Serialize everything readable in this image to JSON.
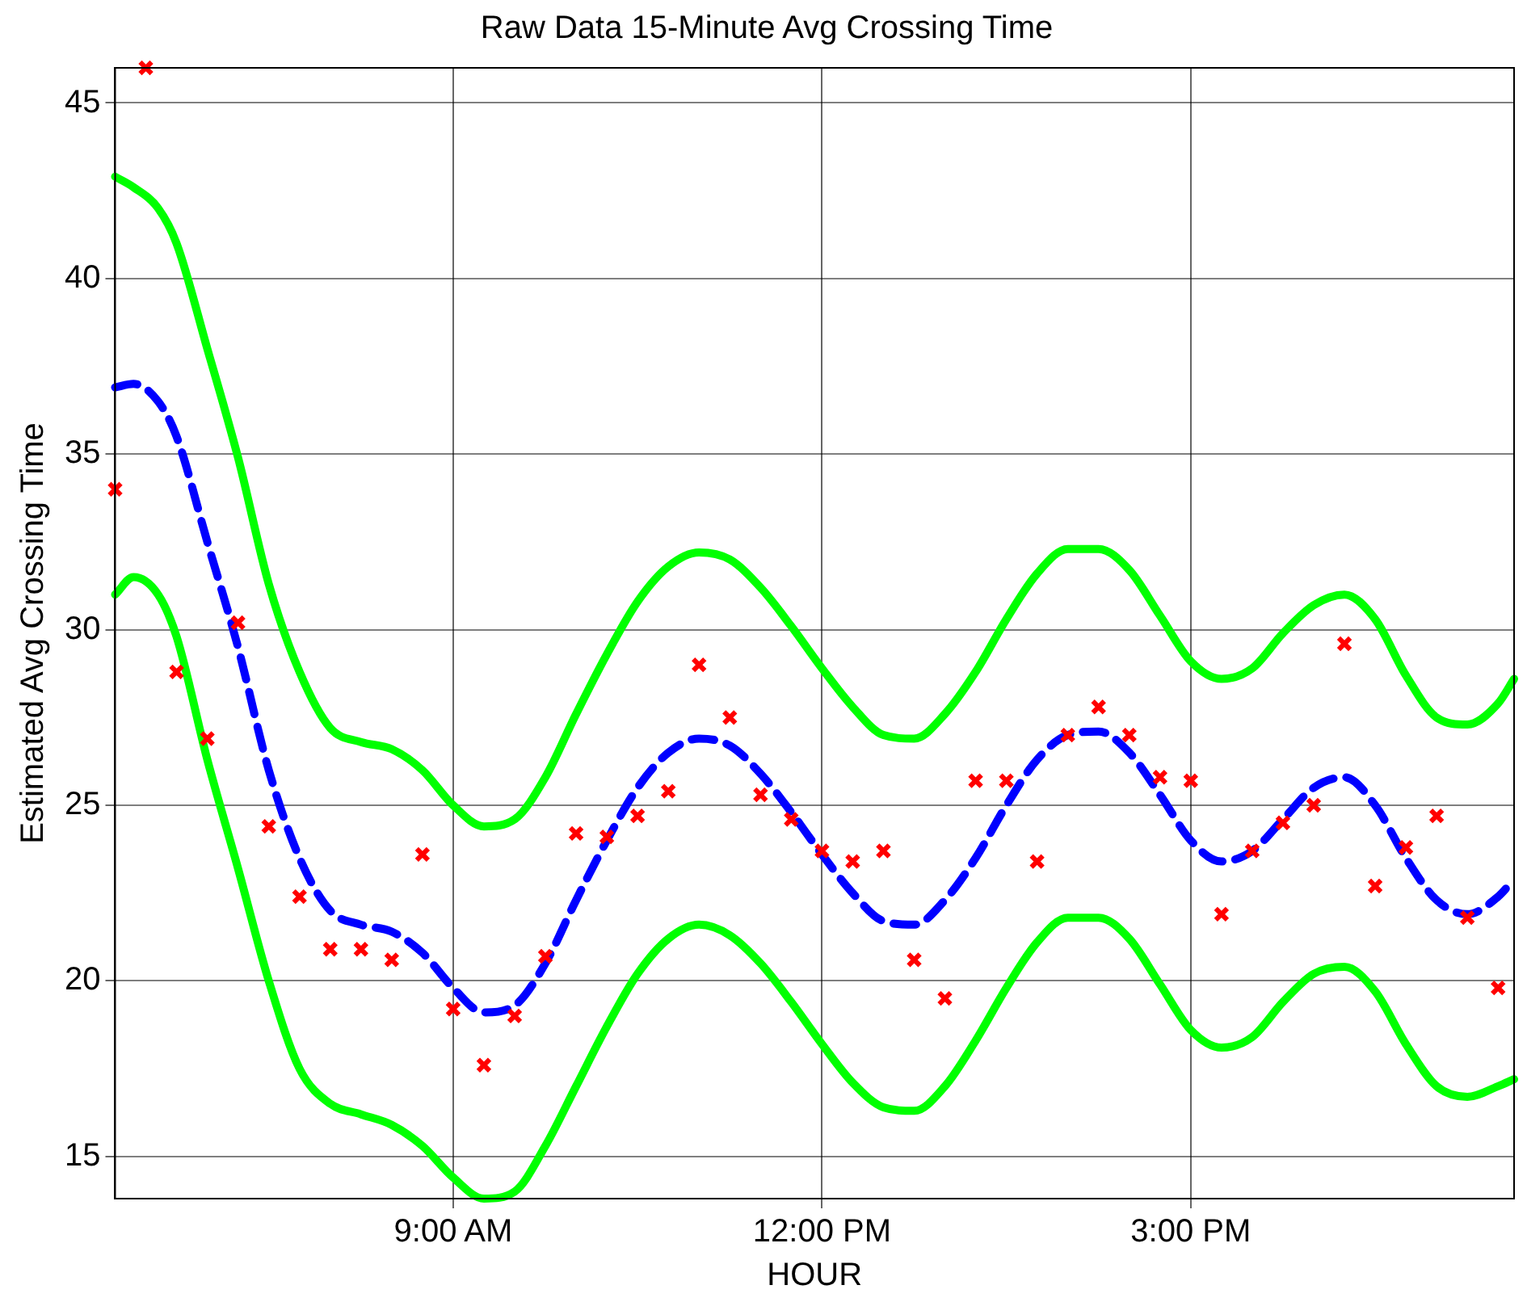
{
  "chart_data": {
    "type": "line",
    "title": "Raw Data 15-Minute Avg Crossing Time",
    "xlabel": "HOUR",
    "ylabel": "Estimated Avg Crossing Time",
    "xlim": [
      6.25,
      17.63
    ],
    "xticks": [
      {
        "value": 9,
        "label": "9:00 AM"
      },
      {
        "value": 12,
        "label": "12:00 PM"
      },
      {
        "value": 15,
        "label": "3:00 PM"
      }
    ],
    "ylim": [
      13.8,
      46
    ],
    "yticks": [
      15,
      20,
      25,
      30,
      35,
      40,
      45
    ],
    "grid": true,
    "legend": false,
    "series": [
      {
        "type": "scatter",
        "color": "#ff0000",
        "marker": "cross",
        "x": [
          6.25,
          6.5,
          6.75,
          7,
          7.25,
          7.5,
          7.75,
          8,
          8.25,
          8.5,
          8.75,
          9,
          9.25,
          9.5,
          9.75,
          10,
          10.25,
          10.5,
          10.75,
          11,
          11.25,
          11.5,
          11.75,
          12,
          12.25,
          12.5,
          12.75,
          13,
          13.25,
          13.5,
          13.75,
          14,
          14.25,
          14.5,
          14.75,
          15,
          15.25,
          15.5,
          15.75,
          16,
          16.25,
          16.5,
          16.75,
          17,
          17.25,
          17.5
        ],
        "values": [
          34.0,
          46,
          28.8,
          26.9,
          30.2,
          24.4,
          22.4,
          20.9,
          20.9,
          20.6,
          23.6,
          19.2,
          17.6,
          19.0,
          20.7,
          24.2,
          24.1,
          24.7,
          25.4,
          29.0,
          27.5,
          25.3,
          24.6,
          23.7,
          23.4,
          23.7,
          20.6,
          19.5,
          25.7,
          25.7,
          23.4,
          27.0,
          27.8,
          27.0,
          25.8,
          25.7,
          21.9,
          23.7,
          24.5,
          25.0,
          29.6,
          22.7,
          23.8,
          24.7,
          21.8,
          19.8
        ]
      },
      {
        "color": "#0000ff",
        "line_style": "dashed",
        "x": [
          6.25,
          6.4,
          6.6,
          6.75,
          7,
          7.25,
          7.5,
          7.75,
          8,
          8.25,
          8.5,
          8.75,
          9,
          9.25,
          9.5,
          9.75,
          10,
          10.25,
          10.5,
          10.75,
          11,
          11.25,
          11.5,
          11.75,
          12,
          12.25,
          12.5,
          12.75,
          13,
          13.25,
          13.5,
          13.75,
          14,
          14.25,
          14.5,
          14.75,
          15,
          15.25,
          15.5,
          15.75,
          16,
          16.25,
          16.5,
          16.75,
          17,
          17.25,
          17.5,
          17.63
        ],
        "values": [
          36.9,
          37.0,
          36.5,
          35.5,
          32.5,
          29.5,
          26.0,
          23.5,
          22.0,
          21.6,
          21.4,
          20.8,
          19.8,
          19.1,
          19.3,
          20.5,
          22.3,
          24.0,
          25.5,
          26.5,
          26.9,
          26.7,
          25.9,
          24.8,
          23.6,
          22.5,
          21.7,
          21.6,
          22.3,
          23.5,
          25.0,
          26.3,
          27.0,
          27.1,
          26.5,
          25.3,
          24.0,
          23.4,
          23.7,
          24.6,
          25.5,
          25.8,
          25.0,
          23.5,
          22.3,
          21.9,
          22.4,
          22.9
        ]
      },
      {
        "color": "#00ff00",
        "line_style": "solid",
        "x": [
          6.25,
          6.4,
          6.6,
          6.75,
          7,
          7.25,
          7.5,
          7.75,
          8,
          8.25,
          8.5,
          8.75,
          9,
          9.25,
          9.5,
          9.75,
          10,
          10.25,
          10.5,
          10.75,
          11,
          11.25,
          11.5,
          11.75,
          12,
          12.25,
          12.5,
          12.75,
          13,
          13.25,
          13.5,
          13.75,
          14,
          14.25,
          14.5,
          14.75,
          15,
          15.25,
          15.5,
          15.75,
          16,
          16.25,
          16.5,
          16.75,
          17,
          17.25,
          17.5,
          17.63
        ],
        "values": [
          42.9,
          42.6,
          42.0,
          41.0,
          38.0,
          34.9,
          31.3,
          28.8,
          27.2,
          26.8,
          26.6,
          26.0,
          25.0,
          24.4,
          24.6,
          25.8,
          27.6,
          29.3,
          30.8,
          31.8,
          32.2,
          32.0,
          31.2,
          30.1,
          28.9,
          27.8,
          27.0,
          26.9,
          27.6,
          28.8,
          30.3,
          31.6,
          32.3,
          32.3,
          31.7,
          30.4,
          29.1,
          28.6,
          28.9,
          29.9,
          30.7,
          31.0,
          30.3,
          28.7,
          27.5,
          27.3,
          27.9,
          28.6
        ]
      },
      {
        "color": "#00ff00",
        "line_style": "solid",
        "x": [
          6.25,
          6.4,
          6.6,
          6.75,
          7,
          7.25,
          7.5,
          7.75,
          8,
          8.25,
          8.5,
          8.75,
          9,
          9.25,
          9.5,
          9.75,
          10,
          10.25,
          10.5,
          10.75,
          11,
          11.25,
          11.5,
          11.75,
          12,
          12.25,
          12.5,
          12.75,
          13,
          13.25,
          13.5,
          13.75,
          14,
          14.25,
          14.5,
          14.75,
          15,
          15.25,
          15.5,
          15.75,
          16,
          16.25,
          16.5,
          16.75,
          17,
          17.25,
          17.5,
          17.63
        ],
        "values": [
          31.0,
          31.5,
          31.0,
          29.8,
          26.3,
          23.2,
          20.0,
          17.5,
          16.5,
          16.2,
          15.9,
          15.3,
          14.4,
          13.8,
          14.0,
          15.3,
          17.0,
          18.7,
          20.2,
          21.2,
          21.6,
          21.3,
          20.5,
          19.4,
          18.2,
          17.1,
          16.4,
          16.3,
          17.0,
          18.3,
          19.8,
          21.1,
          21.8,
          21.8,
          21.2,
          19.9,
          18.6,
          18.1,
          18.4,
          19.4,
          20.2,
          20.4,
          19.7,
          18.2,
          17.0,
          16.7,
          17.0,
          17.2
        ]
      }
    ]
  }
}
